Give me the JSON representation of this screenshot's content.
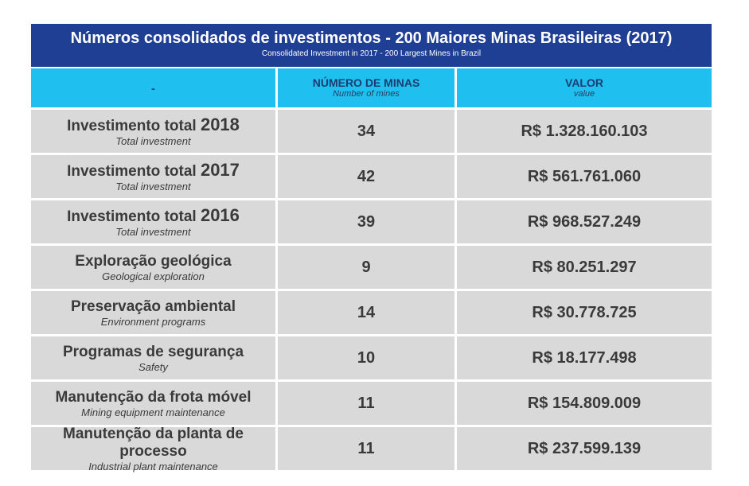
{
  "title": {
    "main": "Números consolidados de investimentos - 200 Maiores Minas Brasileiras (2017)",
    "sub": "Consolidated Investment in 2017 - 200 Largest Mines in Brazil"
  },
  "header": {
    "col1": "-",
    "col2_main": "NÚMERO DE MINAS",
    "col2_sub": "Number of mines",
    "col3_main": "VALOR",
    "col3_sub": "value"
  },
  "rows": [
    {
      "label": "Investimento total ",
      "year": "2018",
      "sub": "Total investment",
      "mines": "34",
      "value": "R$ 1.328.160.103"
    },
    {
      "label": "Investimento total ",
      "year": "2017",
      "sub": "Total investment",
      "mines": "42",
      "value": "R$ 561.761.060"
    },
    {
      "label": "Investimento total ",
      "year": "2016",
      "sub": "Total investment",
      "mines": "39",
      "value": "R$ 968.527.249"
    },
    {
      "label": "Exploração geológica",
      "sub": "Geological exploration",
      "mines": "9",
      "value": "R$ 80.251.297"
    },
    {
      "label": "Preservação ambiental",
      "sub": "Environment programs",
      "mines": "14",
      "value": "R$ 30.778.725"
    },
    {
      "label": "Programas de segurança",
      "sub": "Safety",
      "mines": "10",
      "value": "R$ 18.177.498"
    },
    {
      "label": "Manutenção da frota móvel",
      "sub": "Mining equipment maintenance",
      "mines": "11",
      "value": "R$ 154.809.009"
    },
    {
      "label": "Manutenção da planta de processo",
      "sub": "Industrial plant maintenance",
      "mines": "11",
      "value": "R$ 237.599.139"
    }
  ],
  "colors": {
    "title_bg": "#1f3f94",
    "header_bg": "#1fbff0",
    "row_bg": "#d9d9d9"
  }
}
